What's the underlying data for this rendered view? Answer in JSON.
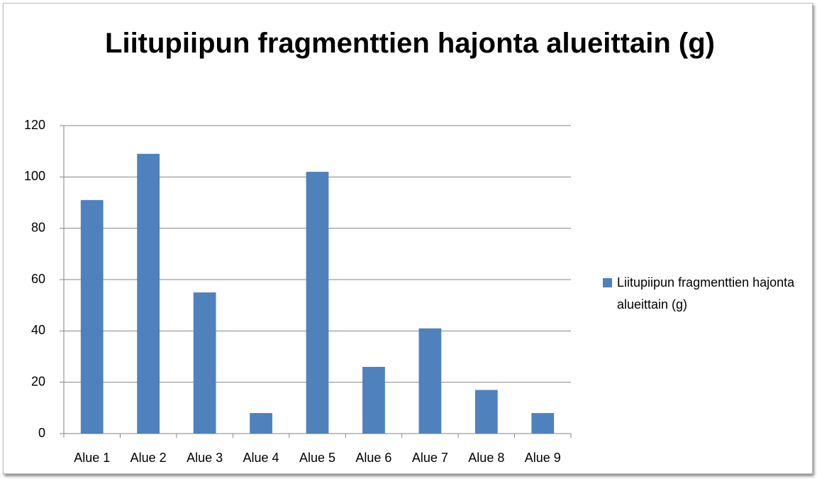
{
  "chart_data": {
    "type": "bar",
    "title": "Liitupiipun fragmenttien hajonta alueittain (g)",
    "categories": [
      "Alue 1",
      "Alue 2",
      "Alue 3",
      "Alue 4",
      "Alue 5",
      "Alue 6",
      "Alue 7",
      "Alue 8",
      "Alue 9"
    ],
    "series": [
      {
        "name": "Liitupiipun fragmenttien hajonta alueittain (g)",
        "color": "#4f81bd",
        "values": [
          91,
          109,
          55,
          8,
          102,
          26,
          41,
          17,
          8
        ]
      }
    ],
    "ylim": [
      0,
      120
    ],
    "yticks": [
      0,
      20,
      40,
      60,
      80,
      100,
      120
    ],
    "grid": true,
    "legend": "right"
  }
}
